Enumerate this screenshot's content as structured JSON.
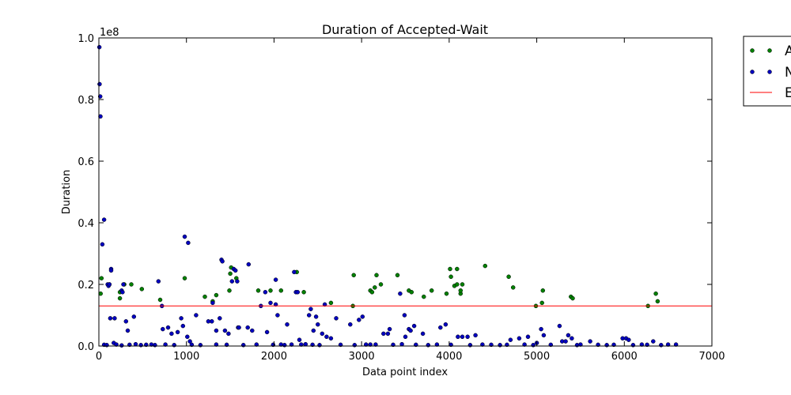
{
  "chart_data": {
    "type": "scatter",
    "title": "Duration of Accepted-Wait",
    "xlabel": "Data point index",
    "ylabel": "Duration",
    "y_offset_label": "1e8",
    "xlim": [
      0,
      7000
    ],
    "ylim": [
      0,
      1.0
    ],
    "x_ticks": [
      0,
      1000,
      2000,
      3000,
      4000,
      5000,
      6000,
      7000
    ],
    "x_tick_labels": [
      "0",
      "1000",
      "2000",
      "3000",
      "4000",
      "5000",
      "6000",
      "7000"
    ],
    "y_ticks": [
      0,
      0.2,
      0.4,
      0.6,
      0.8,
      1.0
    ],
    "y_tick_labels": [
      "0.0",
      "0.2",
      "0.4",
      "0.6",
      "0.8",
      "1.0"
    ],
    "grid": false,
    "legend_position": "outside-top-right",
    "legend": [
      "A",
      "N",
      "E"
    ],
    "colors": {
      "green": "#008000",
      "blue": "#0000c0",
      "line": "#ff0000"
    },
    "series": [
      {
        "kind": "scatter",
        "color": "#008000",
        "points": [
          [
            20,
            0.17
          ],
          [
            30,
            0.22
          ],
          [
            120,
            0.2
          ],
          [
            240,
            0.155
          ],
          [
            240,
            0.175
          ],
          [
            290,
            0.2
          ],
          [
            370,
            0.2
          ],
          [
            490,
            0.185
          ],
          [
            700,
            0.15
          ],
          [
            980,
            0.22
          ],
          [
            1210,
            0.16
          ],
          [
            1300,
            0.145
          ],
          [
            1340,
            0.165
          ],
          [
            1490,
            0.18
          ],
          [
            1500,
            0.235
          ],
          [
            1510,
            0.255
          ],
          [
            1570,
            0.22
          ],
          [
            1820,
            0.18
          ],
          [
            1960,
            0.18
          ],
          [
            2080,
            0.18
          ],
          [
            2260,
            0.24
          ],
          [
            2340,
            0.175
          ],
          [
            2650,
            0.14
          ],
          [
            2900,
            0.13
          ],
          [
            2910,
            0.23
          ],
          [
            3100,
            0.18
          ],
          [
            3120,
            0.175
          ],
          [
            3150,
            0.19
          ],
          [
            3170,
            0.23
          ],
          [
            3220,
            0.2
          ],
          [
            3410,
            0.23
          ],
          [
            3540,
            0.18
          ],
          [
            3570,
            0.175
          ],
          [
            3710,
            0.16
          ],
          [
            3800,
            0.18
          ],
          [
            3970,
            0.17
          ],
          [
            4010,
            0.25
          ],
          [
            4020,
            0.225
          ],
          [
            4060,
            0.195
          ],
          [
            4090,
            0.2
          ],
          [
            4090,
            0.25
          ],
          [
            4130,
            0.17
          ],
          [
            4130,
            0.18
          ],
          [
            4150,
            0.2
          ],
          [
            4410,
            0.26
          ],
          [
            4680,
            0.225
          ],
          [
            4730,
            0.19
          ],
          [
            4990,
            0.13
          ],
          [
            5060,
            0.14
          ],
          [
            5070,
            0.18
          ],
          [
            5390,
            0.16
          ],
          [
            5410,
            0.155
          ],
          [
            6270,
            0.13
          ],
          [
            6360,
            0.17
          ],
          [
            6380,
            0.145
          ]
        ]
      },
      {
        "kind": "scatter",
        "color": "#0000c0",
        "points": [
          [
            5,
            0.97
          ],
          [
            8,
            0.85
          ],
          [
            15,
            0.81
          ],
          [
            18,
            0.745
          ],
          [
            40,
            0.33
          ],
          [
            60,
            0.41
          ],
          [
            100,
            0.2
          ],
          [
            110,
            0.195
          ],
          [
            120,
            0.2
          ],
          [
            130,
            0.09
          ],
          [
            140,
            0.25
          ],
          [
            140,
            0.245
          ],
          [
            170,
            0.01
          ],
          [
            180,
            0.09
          ],
          [
            260,
            0.18
          ],
          [
            270,
            0.175
          ],
          [
            280,
            0.2
          ],
          [
            310,
            0.08
          ],
          [
            330,
            0.05
          ],
          [
            400,
            0.095
          ],
          [
            600,
            0.005
          ],
          [
            680,
            0.21
          ],
          [
            720,
            0.13
          ],
          [
            730,
            0.055
          ],
          [
            790,
            0.06
          ],
          [
            830,
            0.04
          ],
          [
            900,
            0.045
          ],
          [
            940,
            0.09
          ],
          [
            960,
            0.065
          ],
          [
            980,
            0.355
          ],
          [
            1020,
            0.335
          ],
          [
            1010,
            0.03
          ],
          [
            1040,
            0.015
          ],
          [
            1110,
            0.1
          ],
          [
            1250,
            0.08
          ],
          [
            1290,
            0.08
          ],
          [
            1300,
            0.14
          ],
          [
            1340,
            0.05
          ],
          [
            1380,
            0.09
          ],
          [
            1400,
            0.28
          ],
          [
            1410,
            0.275
          ],
          [
            1440,
            0.05
          ],
          [
            1480,
            0.04
          ],
          [
            1520,
            0.21
          ],
          [
            1540,
            0.25
          ],
          [
            1560,
            0.245
          ],
          [
            1580,
            0.21
          ],
          [
            1590,
            0.06
          ],
          [
            1600,
            0.06
          ],
          [
            1700,
            0.06
          ],
          [
            1710,
            0.265
          ],
          [
            1750,
            0.05
          ],
          [
            1850,
            0.13
          ],
          [
            1900,
            0.175
          ],
          [
            1920,
            0.045
          ],
          [
            1960,
            0.14
          ],
          [
            2020,
            0.135
          ],
          [
            2020,
            0.215
          ],
          [
            2040,
            0.1
          ],
          [
            2080,
            0.005
          ],
          [
            2150,
            0.07
          ],
          [
            2200,
            0.005
          ],
          [
            2230,
            0.24
          ],
          [
            2250,
            0.175
          ],
          [
            2270,
            0.175
          ],
          [
            2290,
            0.02
          ],
          [
            2310,
            0.005
          ],
          [
            2400,
            0.1
          ],
          [
            2420,
            0.12
          ],
          [
            2450,
            0.05
          ],
          [
            2480,
            0.095
          ],
          [
            2500,
            0.07
          ],
          [
            2550,
            0.04
          ],
          [
            2580,
            0.135
          ],
          [
            2600,
            0.03
          ],
          [
            2650,
            0.025
          ],
          [
            2710,
            0.09
          ],
          [
            2870,
            0.07
          ],
          [
            2970,
            0.085
          ],
          [
            3010,
            0.095
          ],
          [
            3050,
            0.005
          ],
          [
            3100,
            0.005
          ],
          [
            3250,
            0.04
          ],
          [
            3300,
            0.04
          ],
          [
            3320,
            0.055
          ],
          [
            3440,
            0.17
          ],
          [
            3490,
            0.1
          ],
          [
            3500,
            0.03
          ],
          [
            3540,
            0.055
          ],
          [
            3560,
            0.05
          ],
          [
            3600,
            0.065
          ],
          [
            3700,
            0.04
          ],
          [
            3900,
            0.06
          ],
          [
            3960,
            0.07
          ],
          [
            4100,
            0.03
          ],
          [
            4150,
            0.03
          ],
          [
            4210,
            0.03
          ],
          [
            4300,
            0.035
          ],
          [
            4700,
            0.02
          ],
          [
            4800,
            0.025
          ],
          [
            4900,
            0.03
          ],
          [
            5000,
            0.01
          ],
          [
            5050,
            0.055
          ],
          [
            5080,
            0.035
          ],
          [
            5260,
            0.065
          ],
          [
            5290,
            0.015
          ],
          [
            5330,
            0.015
          ],
          [
            5360,
            0.035
          ],
          [
            5400,
            0.025
          ],
          [
            5500,
            0.005
          ],
          [
            5610,
            0.015
          ],
          [
            5980,
            0.025
          ],
          [
            6020,
            0.025
          ],
          [
            6050,
            0.02
          ],
          [
            6200,
            0.005
          ],
          [
            6330,
            0.015
          ],
          [
            6500,
            0.005
          ],
          [
            6590,
            0.005
          ],
          [
            60,
            0.004
          ],
          [
            90,
            0.003
          ],
          [
            200,
            0.005
          ],
          [
            260,
            0.002
          ],
          [
            350,
            0.004
          ],
          [
            420,
            0.006
          ],
          [
            480,
            0.003
          ],
          [
            540,
            0.004
          ],
          [
            640,
            0.003
          ],
          [
            760,
            0.005
          ],
          [
            860,
            0.003
          ],
          [
            1060,
            0.004
          ],
          [
            1160,
            0.003
          ],
          [
            1340,
            0.005
          ],
          [
            1460,
            0.004
          ],
          [
            1650,
            0.003
          ],
          [
            1800,
            0.005
          ],
          [
            1990,
            0.004
          ],
          [
            2120,
            0.003
          ],
          [
            2360,
            0.006
          ],
          [
            2440,
            0.004
          ],
          [
            2520,
            0.003
          ],
          [
            2760,
            0.004
          ],
          [
            2920,
            0.003
          ],
          [
            3160,
            0.005
          ],
          [
            3360,
            0.004
          ],
          [
            3460,
            0.006
          ],
          [
            3620,
            0.004
          ],
          [
            3760,
            0.003
          ],
          [
            3860,
            0.005
          ],
          [
            4020,
            0.004
          ],
          [
            4240,
            0.003
          ],
          [
            4380,
            0.005
          ],
          [
            4480,
            0.004
          ],
          [
            4580,
            0.003
          ],
          [
            4660,
            0.004
          ],
          [
            4860,
            0.005
          ],
          [
            4960,
            0.003
          ],
          [
            5160,
            0.004
          ],
          [
            5460,
            0.003
          ],
          [
            5700,
            0.004
          ],
          [
            5800,
            0.003
          ],
          [
            5880,
            0.004
          ],
          [
            6100,
            0.003
          ],
          [
            6260,
            0.004
          ],
          [
            6420,
            0.003
          ]
        ]
      },
      {
        "kind": "hline",
        "color": "#ff0000",
        "y": 0.13
      }
    ]
  }
}
